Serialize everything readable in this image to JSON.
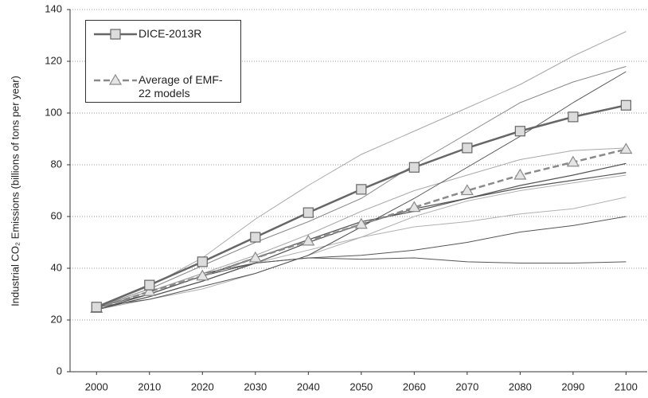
{
  "chart_data": {
    "type": "line",
    "y_label": "Industrial CO₂ Emissions (billions of tons per year)",
    "x": [
      2000,
      2010,
      2020,
      2030,
      2040,
      2050,
      2060,
      2070,
      2080,
      2090,
      2100
    ],
    "xlim": [
      1995,
      2104
    ],
    "xticks": [
      2000,
      2010,
      2020,
      2030,
      2040,
      2050,
      2060,
      2070,
      2080,
      2090,
      2100
    ],
    "ylim": [
      0,
      140
    ],
    "yticks": [
      0,
      20,
      40,
      60,
      80,
      100,
      120,
      140
    ],
    "grid": true,
    "legend": "upper left",
    "series": [
      {
        "name": "DICE-2013R",
        "color": "#666666",
        "width": 2.5,
        "marker": "square",
        "values": [
          25,
          33.5,
          42.5,
          52,
          61.5,
          70.5,
          79,
          86.5,
          93,
          98.5,
          103
        ]
      },
      {
        "name": "Average of EMF-22 models",
        "color": "#8a8a8a",
        "width": 2.5,
        "dashed": true,
        "marker": "triangle",
        "values": [
          24.5,
          31,
          37,
          44,
          50.5,
          57,
          63.5,
          70,
          76,
          81,
          86
        ]
      },
      {
        "color": "#a8a8a8",
        "width": 1,
        "values": [
          25,
          33,
          44,
          59,
          72,
          84,
          93,
          102,
          111,
          122,
          131.5
        ]
      },
      {
        "color": "#888888",
        "width": 1,
        "values": [
          25,
          32,
          41,
          50,
          58,
          67,
          80,
          92,
          104,
          112,
          118
        ]
      },
      {
        "color": "#555555",
        "width": 1,
        "values": [
          25,
          28,
          33,
          38,
          45,
          56,
          67,
          79,
          91,
          104,
          116
        ]
      },
      {
        "color": "#a8a8a8",
        "width": 1,
        "values": [
          25,
          31,
          38,
          45,
          53,
          62,
          70,
          76,
          82,
          85.5,
          86.5
        ]
      },
      {
        "color": "#555555",
        "width": 1.2,
        "values": [
          24,
          29,
          35,
          42,
          50,
          57,
          63,
          67,
          72,
          76,
          80.5
        ]
      },
      {
        "color": "#555555",
        "width": 1.2,
        "values": [
          24,
          30,
          37,
          44,
          51,
          58,
          62,
          67,
          71,
          74,
          77
        ]
      },
      {
        "color": "#b0b0b0",
        "width": 1,
        "values": [
          24,
          28,
          32,
          38,
          45,
          52,
          60,
          66,
          70,
          73,
          76
        ]
      },
      {
        "color": "#b0b0b0",
        "width": 1,
        "values": [
          24,
          29,
          35,
          42,
          47,
          52,
          56,
          58,
          61,
          63,
          67.5
        ]
      },
      {
        "color": "#555555",
        "width": 1,
        "values": [
          25,
          30,
          37,
          42,
          44,
          45,
          47,
          50,
          54,
          56.5,
          60
        ]
      },
      {
        "color": "#555555",
        "width": 1,
        "values": [
          25,
          31,
          38,
          42,
          44,
          43.5,
          44,
          42.5,
          42,
          42,
          42.5
        ]
      }
    ]
  }
}
